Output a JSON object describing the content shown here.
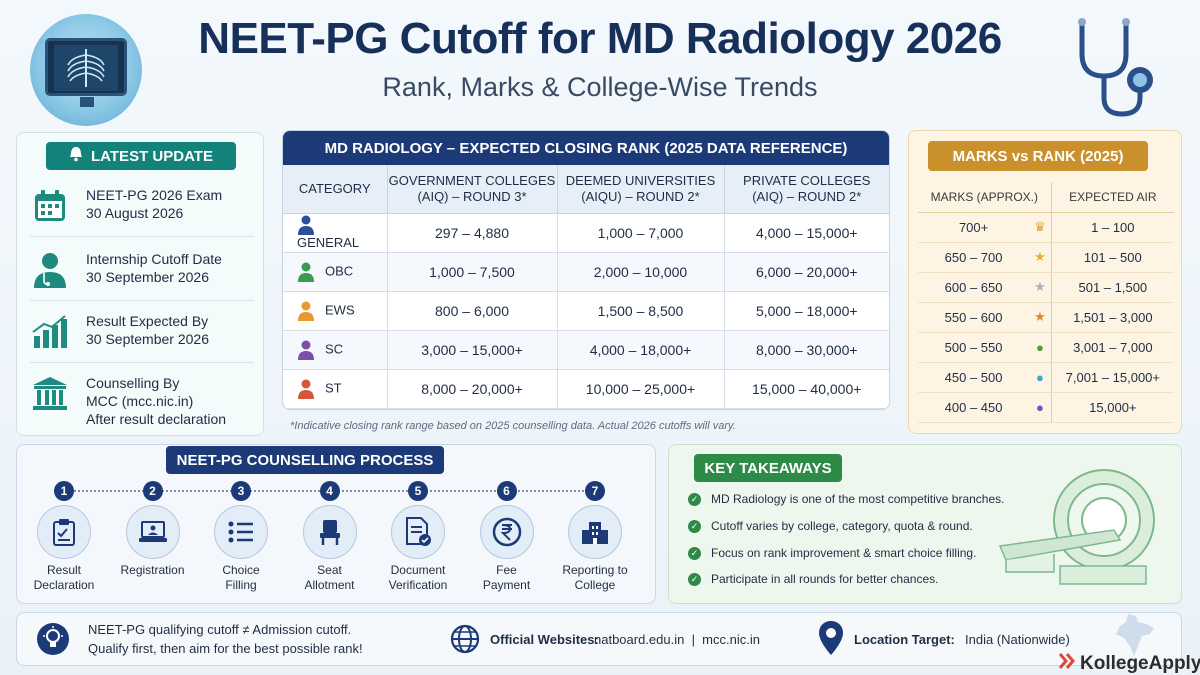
{
  "header": {
    "title": "NEET-PG Cutoff for MD Radiology 2026",
    "subtitle": "Rank, Marks & College-Wise Trends"
  },
  "latest_update": {
    "badge": "LATEST UPDATE",
    "items": [
      {
        "icon": "calendar-icon",
        "line1": "NEET-PG 2026 Exam",
        "line2": "30 August 2026",
        "line3": ""
      },
      {
        "icon": "doctor-icon",
        "line1": "Internship Cutoff Date",
        "line2": "30 September 2026",
        "line3": ""
      },
      {
        "icon": "bar-chart-icon",
        "line1": "Result Expected By",
        "line2": "30 September 2026",
        "line3": ""
      },
      {
        "icon": "institution-icon",
        "line1": "Counselling By",
        "line2": "MCC (mcc.nic.in)",
        "line3": "After result declaration"
      }
    ]
  },
  "closing_rank": {
    "title": "MD RADIOLOGY – EXPECTED CLOSING RANK (2025 DATA REFERENCE)",
    "headers": [
      {
        "l1": "CATEGORY",
        "l2": ""
      },
      {
        "l1": "GOVERNMENT COLLEGES",
        "l2": "(AIQ) – ROUND 3*"
      },
      {
        "l1": "DEEMED UNIVERSITIES",
        "l2": "(AIQU) – ROUND 2*"
      },
      {
        "l1": "PRIVATE COLLEGES",
        "l2": "(AIQ) – ROUND 2*"
      }
    ],
    "rows": [
      {
        "category": "GENERAL",
        "color": "#2a4f9e",
        "gov": "297 – 4,880",
        "deemed": "1,000 – 7,000",
        "private": "4,000 – 15,000+"
      },
      {
        "category": "OBC",
        "color": "#3c9a4f",
        "gov": "1,000 – 7,500",
        "deemed": "2,000 – 10,000",
        "private": "6,000 – 20,000+"
      },
      {
        "category": "EWS",
        "color": "#e89a2c",
        "gov": "800 – 6,000",
        "deemed": "1,500 – 8,500",
        "private": "5,000 – 18,000+"
      },
      {
        "category": "SC",
        "color": "#7a4fa8",
        "gov": "3,000 – 15,000+",
        "deemed": "4,000 – 18,000+",
        "private": "8,000 – 30,000+"
      },
      {
        "category": "ST",
        "color": "#d2573b",
        "gov": "8,000 – 20,000+",
        "deemed": "10,000 – 25,000+",
        "private": "15,000 – 40,000+"
      }
    ],
    "footnote": "*Indicative closing rank range based on 2025 counselling data. Actual 2026 cutoffs will vary."
  },
  "marks_vs_rank": {
    "badge": "MARKS vs RANK (2025)",
    "col_marks": "MARKS (APPROX.)",
    "col_air": "EXPECTED AIR",
    "rows": [
      {
        "marks": "700+",
        "marker": "♛",
        "marker_color": "#e0a526",
        "air": "1 – 100"
      },
      {
        "marks": "650 – 700",
        "marker": "★",
        "marker_color": "#e5b22a",
        "air": "101 – 500"
      },
      {
        "marks": "600 – 650",
        "marker": "★",
        "marker_color": "#a9b1bd",
        "air": "501 – 1,500"
      },
      {
        "marks": "550 – 600",
        "marker": "★",
        "marker_color": "#d98a2b",
        "air": "1,501 – 3,000"
      },
      {
        "marks": "500 – 550",
        "marker": "●",
        "marker_color": "#4aa33e",
        "air": "3,001 – 7,000"
      },
      {
        "marks": "450 – 500",
        "marker": "●",
        "marker_color": "#3aa6d8",
        "air": "7,001 – 15,000+"
      },
      {
        "marks": "400 – 450",
        "marker": "●",
        "marker_color": "#7a4fc0",
        "air": "15,000+"
      }
    ]
  },
  "process": {
    "badge": "NEET-PG COUNSELLING PROCESS",
    "steps": [
      {
        "num": "1",
        "icon": "clipboard-icon",
        "l1": "Result",
        "l2": "Declaration"
      },
      {
        "num": "2",
        "icon": "laptop-icon",
        "l1": "Registration",
        "l2": ""
      },
      {
        "num": "3",
        "icon": "list-icon",
        "l1": "Choice",
        "l2": "Filling"
      },
      {
        "num": "4",
        "icon": "seat-icon",
        "l1": "Seat",
        "l2": "Allotment"
      },
      {
        "num": "5",
        "icon": "document-check-icon",
        "l1": "Document",
        "l2": "Verification"
      },
      {
        "num": "6",
        "icon": "rupee-icon",
        "l1": "Fee",
        "l2": "Payment"
      },
      {
        "num": "7",
        "icon": "college-icon",
        "l1": "Reporting to",
        "l2": "College"
      }
    ]
  },
  "takeaways": {
    "badge": "KEY TAKEAWAYS",
    "items": [
      "MD Radiology is one of the most competitive branches.",
      "Cutoff varies by college, category, quota & round.",
      "Focus on rank improvement & smart choice filling.",
      "Participate in all rounds for better chances."
    ]
  },
  "bottom": {
    "tip_l1": "NEET-PG qualifying cutoff ≠ Admission cutoff.",
    "tip_l2": "Qualify first, then aim for the best possible rank!",
    "web_label": "Official Websites:",
    "web_value": "natboard.edu.in  |  mcc.nic.in",
    "loc_label": "Location Target:",
    "loc_value": "India (Nationwide)"
  },
  "brand": "KollegeApply"
}
